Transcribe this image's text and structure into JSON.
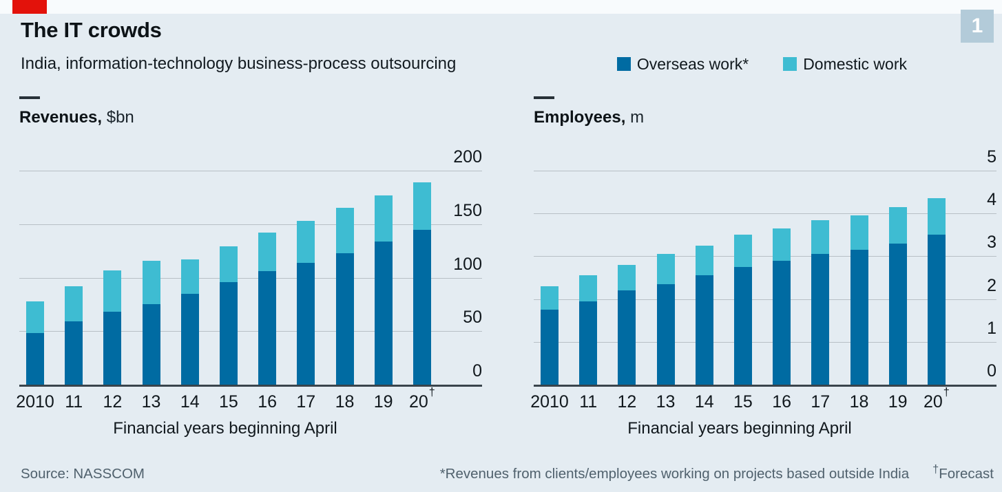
{
  "badge": "1",
  "header": {
    "title": "The IT crowds",
    "subtitle": "India, information-technology business-process outsourcing",
    "legend": [
      {
        "label": "Overseas work*",
        "color": "#006ba2"
      },
      {
        "label": "Domestic work",
        "color": "#3ebcd2"
      }
    ]
  },
  "chart_data": [
    {
      "type": "bar",
      "stacked": true,
      "title_bold": "Revenues,",
      "title_unit": "$bn",
      "categories": [
        "2010",
        "11",
        "12",
        "13",
        "14",
        "15",
        "16",
        "17",
        "18",
        "19",
        "20"
      ],
      "forecast_suffix": "†",
      "series": [
        {
          "name": "Overseas work*",
          "color": "#006ba2",
          "values": [
            48,
            59,
            68,
            75,
            85,
            96,
            106,
            114,
            123,
            134,
            145
          ]
        },
        {
          "name": "Domestic work",
          "color": "#3ebcd2",
          "values": [
            30,
            33,
            39,
            41,
            32,
            33,
            36,
            39,
            42,
            43,
            44
          ]
        }
      ],
      "totals": [
        78,
        92,
        107,
        116,
        117,
        129,
        142,
        153,
        165,
        177,
        189
      ],
      "ylim": [
        0,
        200
      ],
      "yticks": [
        0,
        50,
        100,
        150,
        200
      ],
      "xlabel": "Financial years beginning April",
      "grid": true,
      "legend_position": "top-right-of-subtitle",
      "ytick_side": "right"
    },
    {
      "type": "bar",
      "stacked": true,
      "title_bold": "Employees,",
      "title_unit": "m",
      "categories": [
        "2010",
        "11",
        "12",
        "13",
        "14",
        "15",
        "16",
        "17",
        "18",
        "19",
        "20"
      ],
      "forecast_suffix": "†",
      "series": [
        {
          "name": "Overseas work*",
          "color": "#006ba2",
          "values": [
            1.75,
            1.95,
            2.2,
            2.35,
            2.55,
            2.75,
            2.9,
            3.05,
            3.15,
            3.3,
            3.5
          ]
        },
        {
          "name": "Domestic work",
          "color": "#3ebcd2",
          "values": [
            0.55,
            0.6,
            0.6,
            0.7,
            0.7,
            0.75,
            0.75,
            0.8,
            0.8,
            0.85,
            0.85
          ]
        }
      ],
      "totals": [
        2.3,
        2.55,
        2.8,
        3.05,
        3.25,
        3.5,
        3.65,
        3.85,
        3.95,
        4.15,
        4.35
      ],
      "ylim": [
        0,
        5
      ],
      "yticks": [
        0,
        1,
        2,
        3,
        4,
        5
      ],
      "xlabel": "Financial years beginning April",
      "grid": true,
      "legend_position": "top-right-of-subtitle",
      "ytick_side": "right"
    }
  ],
  "footer": {
    "source": "Source: NASSCOM",
    "note": "*Revenues from clients/employees working on projects based outside India",
    "dagger": "†",
    "forecast_label": "Forecast"
  },
  "colors": {
    "overseas": "#006ba2",
    "domestic": "#3ebcd2",
    "background": "#e4ecf2",
    "red_tab": "#e3120b",
    "badge_bg": "#b3cbd9",
    "gridline": "#b7bfc5",
    "axis": "#39444c",
    "footnote_text": "#50616d"
  }
}
